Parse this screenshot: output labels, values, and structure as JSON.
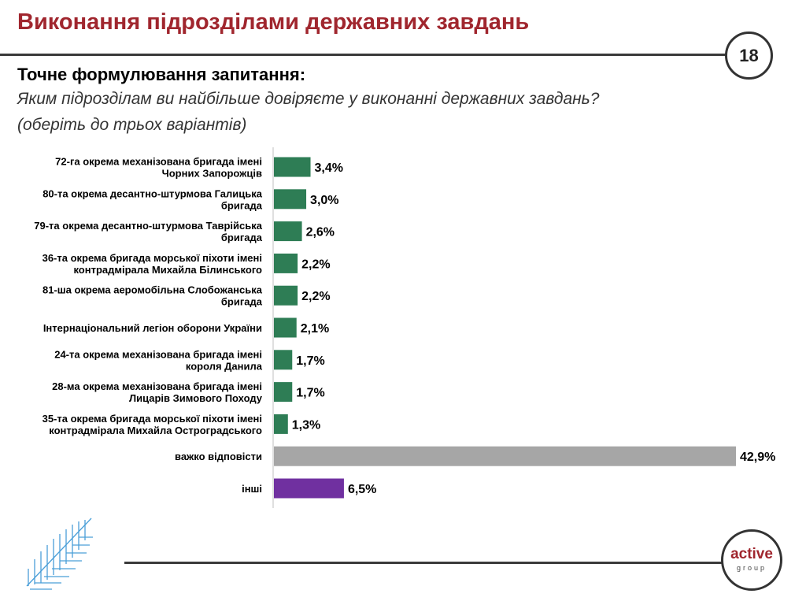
{
  "header": {
    "title": "Виконання підрозділами державних завдань",
    "page_number": "18"
  },
  "question": {
    "heading": "Точне формулювання запитання:",
    "text": "Яким підрозділам ви найбільше довіряєте у виконанні державних завдань?",
    "note": "(оберіть до трьох варіантів)"
  },
  "chart_data": {
    "type": "bar",
    "orientation": "horizontal",
    "categories": [
      [
        "72-га окрема механізована бригада імені",
        "Чорних Запорожців"
      ],
      [
        "80-та окрема десантно-штурмова Галицька",
        "бригада"
      ],
      [
        "79-та окрема десантно-штурмова Таврійська",
        "бригада"
      ],
      [
        "36-та окрема бригада морської піхоти імені",
        "контрадмірала Михайла Білинського"
      ],
      [
        "81-ша окрема аеромобільна Слобожанська",
        "бригада"
      ],
      [
        "Інтернаціональний легіон оборони України"
      ],
      [
        "24-та окрема механізована бригада імені",
        "короля Данила"
      ],
      [
        "28-ма окрема механізована бригада імені",
        "Лицарів Зимового Походу"
      ],
      [
        "35-та окрема бригада морської піхоти імені",
        "контрадмірала Михайла Остроградського"
      ],
      [
        "важко відповісти"
      ],
      [
        "інші"
      ]
    ],
    "values": [
      3.4,
      3.0,
      2.6,
      2.2,
      2.2,
      2.1,
      1.7,
      1.7,
      1.3,
      42.9,
      6.5
    ],
    "value_labels": [
      "3,4%",
      "3,0%",
      "2,6%",
      "2,2%",
      "2,2%",
      "2,1%",
      "1,7%",
      "1,7%",
      "1,3%",
      "42,9%",
      "6,5%"
    ],
    "colors": [
      "#2e7d55",
      "#2e7d55",
      "#2e7d55",
      "#2e7d55",
      "#2e7d55",
      "#2e7d55",
      "#2e7d55",
      "#2e7d55",
      "#2e7d55",
      "#a6a6a6",
      "#7030a0"
    ],
    "xlim": [
      0,
      42.9
    ],
    "grid": false,
    "legend": "none"
  },
  "logo": {
    "main": "active",
    "sub": "group"
  }
}
